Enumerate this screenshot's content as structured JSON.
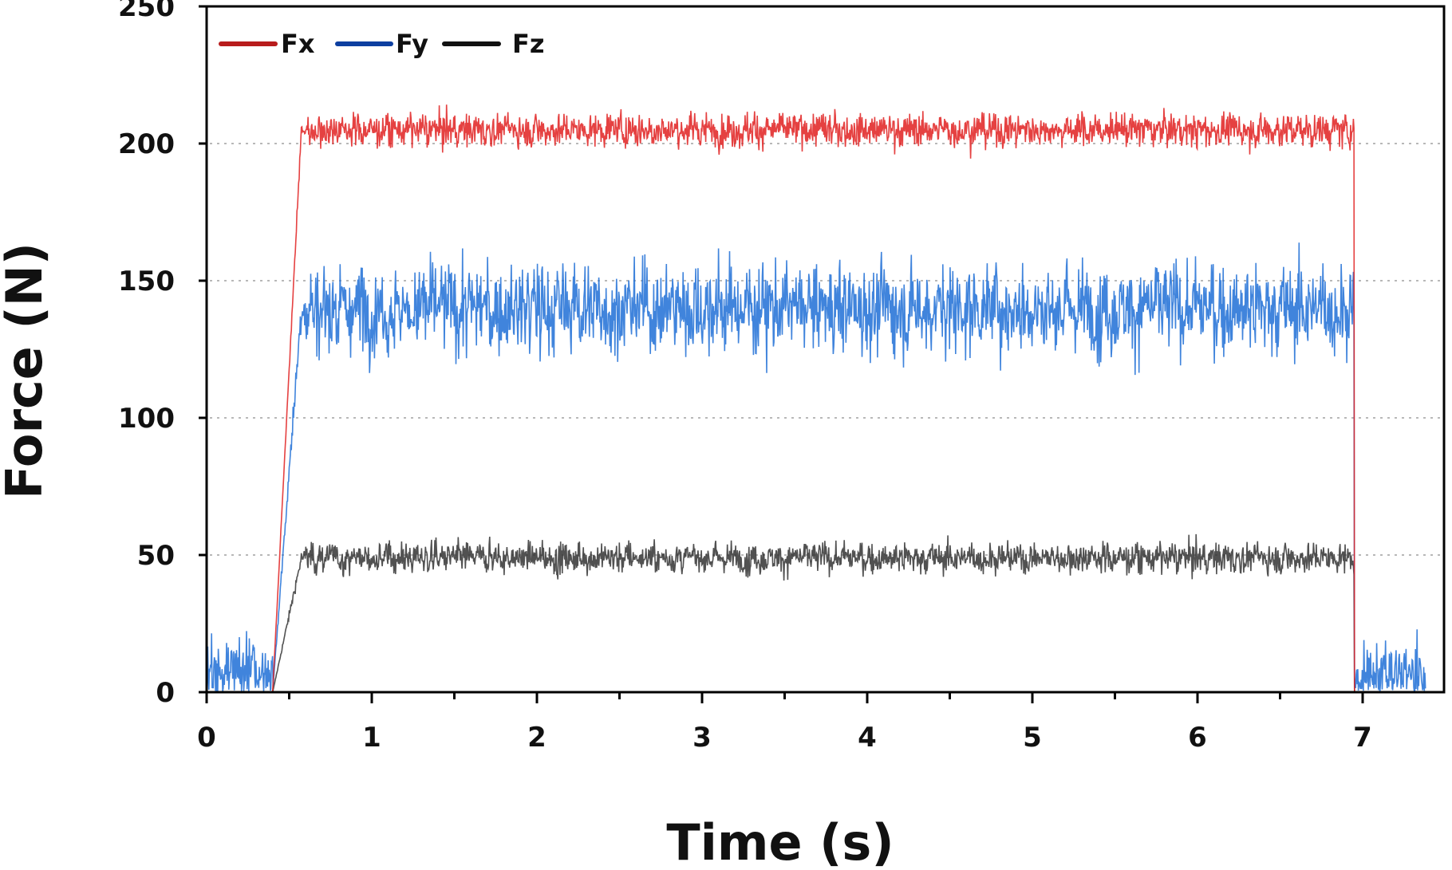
{
  "chart_data": {
    "type": "line",
    "title": "",
    "xlabel": "Time (s)",
    "ylabel": "Force (N)",
    "xlim": [
      0,
      7.5
    ],
    "ylim": [
      0,
      250
    ],
    "x_ticks": [
      0,
      1,
      2,
      3,
      4,
      5,
      6,
      7
    ],
    "x_minor_ticks": [
      0.5,
      1.5,
      2.5,
      3.5,
      4.5,
      5.5,
      6.5
    ],
    "y_ticks": [
      0,
      50,
      100,
      150,
      200,
      250
    ],
    "grid": {
      "y": true,
      "style": "dotted",
      "lines": [
        50,
        100,
        150,
        200
      ]
    },
    "legend": {
      "position": "top-left",
      "orientation": "horizontal"
    },
    "contact_start_s": 0.4,
    "ramp_end_s": 0.6,
    "contact_end_s": 6.95,
    "signal_end_s": 7.38,
    "series": [
      {
        "name": "Fx",
        "color": "#e02020",
        "mean": 205,
        "noise_min": 190,
        "noise_max": 222,
        "start_peak": 224
      },
      {
        "name": "Fy",
        "color": "#1f6fd6",
        "mean": 140,
        "noise_min": 95,
        "noise_max": 183,
        "pre_post_contact_noise_max": 30
      },
      {
        "name": "Fz",
        "color": "#333333",
        "mean": 49,
        "noise_min": 34,
        "noise_max": 64
      }
    ]
  },
  "legend": {
    "fx_label": "Fx",
    "fy_label": "Fy",
    "fz_label": "Fz"
  },
  "colors": {
    "fx": "#e02020",
    "fx_legend": "#b81c1c",
    "fy": "#1f6fd6",
    "fy_legend": "#0d3fa0",
    "fz": "#333333",
    "grid": "#b8b8b8",
    "axis": "#000000"
  }
}
